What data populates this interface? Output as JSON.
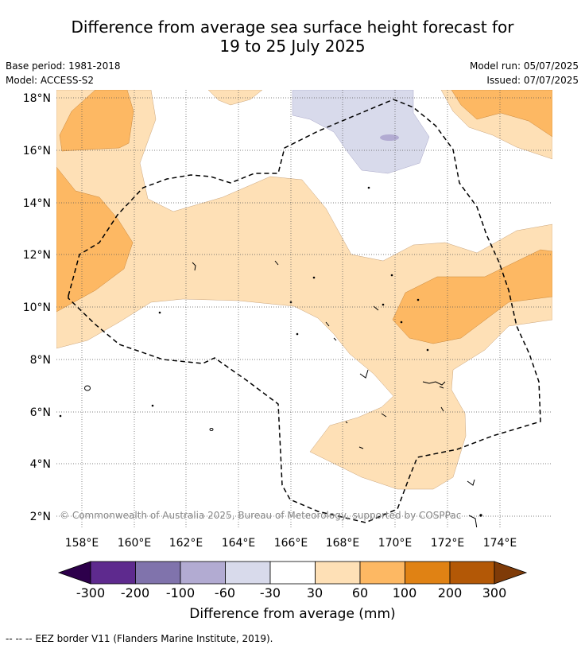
{
  "title_line1": "Difference from average sea surface height forecast for",
  "title_line2": "19 to 25 July 2025",
  "base_period": "Base period: 1981-2018",
  "model": "Model: ACCESS-S2",
  "model_run": "Model run: 05/07/2025",
  "issued": "Issued: 07/07/2025",
  "lat_labels": [
    "18°N",
    "16°N",
    "14°N",
    "12°N",
    "10°N",
    "8°N",
    "6°N",
    "4°N",
    "2°N"
  ],
  "lon_labels": [
    "158°E",
    "160°E",
    "162°E",
    "164°E",
    "166°E",
    "168°E",
    "170°E",
    "172°E",
    "174°E"
  ],
  "copyright": "© Commonwealth of Australia 2025, Bureau of Meteorology, supported by COSPPac",
  "colorbar": {
    "title": "Difference from average (mm)",
    "labels": [
      "-300",
      "-200",
      "-100",
      "-60",
      "-30",
      "30",
      "60",
      "100",
      "200",
      "300"
    ],
    "colors": {
      "under": "#2d004b",
      "bins": [
        "#5e2a8e",
        "#8073ac",
        "#b2abd2",
        "#d8daeb",
        "#ffffff",
        "#fee0b6",
        "#fdb863",
        "#e08214",
        "#b35806"
      ],
      "over": "#7f3b08"
    }
  },
  "footnote": "-- -- -- EEZ border V11 (Flanders Marine Institute, 2019)."
}
